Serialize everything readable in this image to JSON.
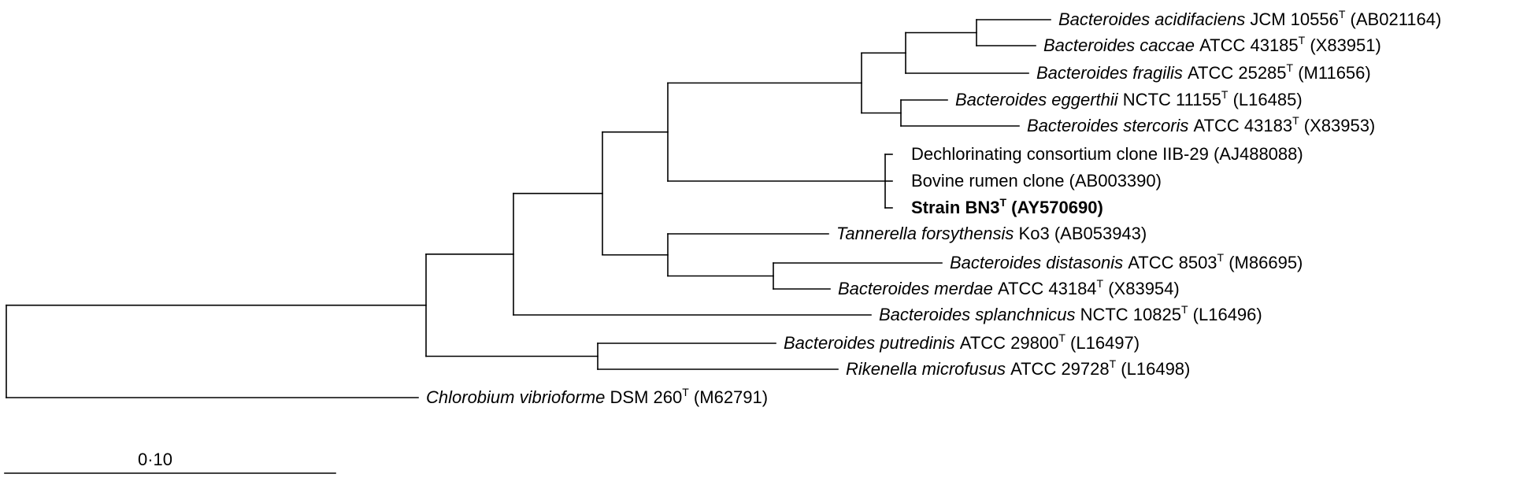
{
  "tree": {
    "leaves": [
      {
        "id": "acidifaciens",
        "name": "Bacteroides acidifaciens",
        "strain": "JCM 10556",
        "type_strain": true,
        "accession": "(AB021164)"
      },
      {
        "id": "caccae",
        "name": "Bacteroides caccae",
        "strain": "ATCC 43185",
        "type_strain": true,
        "accession": "(X83951)"
      },
      {
        "id": "fragilis",
        "name": "Bacteroides fragilis",
        "strain": "ATCC 25285",
        "type_strain": true,
        "accession": "(M11656)"
      },
      {
        "id": "eggerthii",
        "name": "Bacteroides eggerthii",
        "strain": "NCTC 11155",
        "type_strain": true,
        "accession": "(L16485)"
      },
      {
        "id": "stercoris",
        "name": "Bacteroides stercoris",
        "strain": "ATCC 43183",
        "type_strain": true,
        "accession": "(X83953)"
      },
      {
        "id": "dechlor",
        "plain": "Dechlorinating consortium clone IIB-29 (AJ488088)"
      },
      {
        "id": "bovine",
        "plain": "Bovine rumen clone (AB003390)"
      },
      {
        "id": "bn3",
        "strain": "Strain BN3",
        "type_strain": true,
        "accession": "(AY570690)",
        "bold": true
      },
      {
        "id": "tannerella",
        "name": "Tannerella forsythensis",
        "strain": "Ko3",
        "type_strain": false,
        "accession": "(AB053943)"
      },
      {
        "id": "distasonis",
        "name": "Bacteroides distasonis",
        "strain": "ATCC 8503",
        "type_strain": true,
        "accession": "(M86695)"
      },
      {
        "id": "merdae",
        "name": "Bacteroides merdae",
        "strain": "ATCC 43184",
        "type_strain": true,
        "accession": "(X83954)"
      },
      {
        "id": "splanchnicus",
        "name": "Bacteroides splanchnicus",
        "strain": "NCTC 10825",
        "type_strain": true,
        "accession": "(L16496)"
      },
      {
        "id": "putredinis",
        "name": "Bacteroides putredinis",
        "strain": "ATCC 29800",
        "type_strain": true,
        "accession": "(L16497)"
      },
      {
        "id": "rikenella",
        "name": "Rikenella microfusus",
        "strain": "ATCC 29728",
        "type_strain": true,
        "accession": "(L16498)"
      },
      {
        "id": "chlorobium",
        "name": "Chlorobium vibrioforme",
        "strain": "DSM 260",
        "type_strain": true,
        "accession": "(M62791)"
      }
    ],
    "type_marker": "T"
  },
  "scale_bar": {
    "label": "0·10",
    "value": 0.1
  }
}
